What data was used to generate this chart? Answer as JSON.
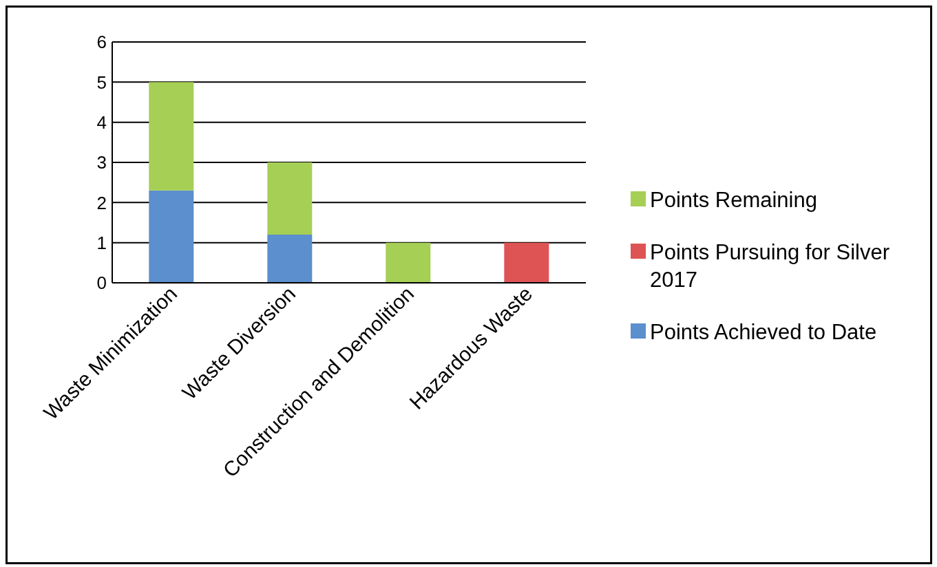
{
  "chart_data": {
    "type": "bar",
    "stacked": true,
    "categories": [
      "Waste Minimization",
      "Waste Diversion",
      "Construction and Demolition",
      "Hazardous Waste"
    ],
    "series": [
      {
        "name": "Points Achieved to Date",
        "color": "#5b8fcd",
        "values": [
          2.3,
          1.2,
          null,
          null
        ]
      },
      {
        "name": "Points Pursuing for Silver 2017",
        "color": "#de5454",
        "values": [
          null,
          null,
          null,
          1
        ]
      },
      {
        "name": "Points Remaining",
        "color": "#a6cf55",
        "values": [
          2.7,
          1.8,
          1,
          null
        ]
      }
    ],
    "ylim": [
      0,
      6
    ],
    "yticks": [
      0,
      1,
      2,
      3,
      4,
      5,
      6
    ],
    "grid": "y",
    "legend": "right"
  }
}
